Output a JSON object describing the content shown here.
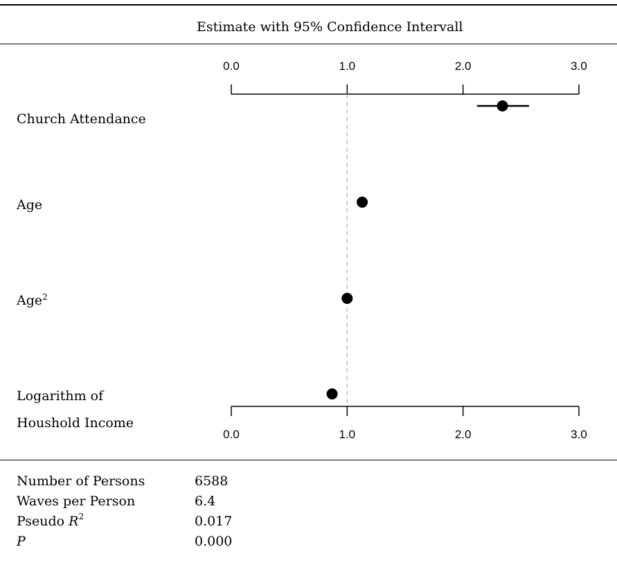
{
  "header": {
    "title": "Estimate with 95% Confidence Intervall"
  },
  "chart_data": {
    "type": "forest",
    "title": "Estimate with 95% Confidence Intervall",
    "xlim": [
      0,
      3
    ],
    "x_ticks": [
      0,
      1,
      2,
      3
    ],
    "x_tick_labels": [
      "0.0",
      "1.0",
      "2.0",
      "3.0"
    ],
    "reference_line": 1.0,
    "reference_line_style": "dashed",
    "rows": [
      {
        "label_lines": [
          "Church Attendance"
        ],
        "estimate": 2.34,
        "lower": 2.12,
        "upper": 2.57
      },
      {
        "label_lines": [
          "Age"
        ],
        "estimate": 1.13,
        "lower": 1.11,
        "upper": 1.15
      },
      {
        "label_lines": [
          "Age",
          "2"
        ],
        "estimate": 1.0,
        "lower": 0.99,
        "upper": 1.01,
        "superscript": true
      },
      {
        "label_lines": [
          "Logarithm of",
          "Houshold Income"
        ],
        "estimate": 0.87,
        "lower": 0.84,
        "upper": 0.9
      }
    ]
  },
  "stats": [
    {
      "label": "Number of Persons",
      "value": "6588"
    },
    {
      "label": "Waves per Person",
      "value": "6.4"
    },
    {
      "label": "Pseudo R",
      "sup": "2",
      "value": "0.017"
    },
    {
      "label": "P",
      "value": "0.000",
      "italic": true
    }
  ]
}
